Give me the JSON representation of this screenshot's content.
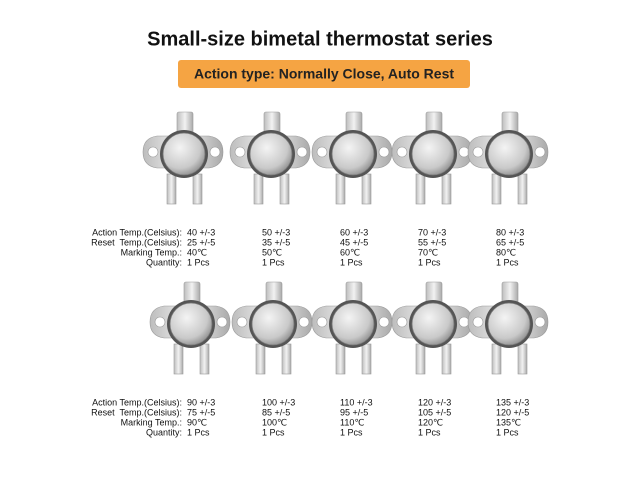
{
  "header": {
    "title": "Small-size bimetal thermostat series",
    "badge": "Action type: Normally Close, Auto Rest"
  },
  "rows": [
    {
      "labels": [
        "Action Temp.(Celsius):",
        "Reset  Temp.(Celsius):",
        "Marking Temp.:",
        "Quantity:"
      ],
      "items": [
        {
          "action": "40 +/-3",
          "reset": "25 +/-5",
          "marking": "40℃",
          "quantity": "1 Pcs"
        },
        {
          "action": "50 +/-3",
          "reset": "35 +/-5",
          "marking": "50℃",
          "quantity": "1 Pcs"
        },
        {
          "action": "60 +/-3",
          "reset": "45 +/-5",
          "marking": "60℃",
          "quantity": "1 Pcs"
        },
        {
          "action": "70 +/-3",
          "reset": "55 +/-5",
          "marking": "70℃",
          "quantity": "1 Pcs"
        },
        {
          "action": "80 +/-3",
          "reset": "65 +/-5",
          "marking": "80℃",
          "quantity": "1 Pcs"
        }
      ]
    },
    {
      "labels": [
        "Action Temp.(Celsius):",
        "Reset  Temp.(Celsius):",
        "Marking Temp.:",
        "Quantity:"
      ],
      "items": [
        {
          "action": "90 +/-3",
          "reset": "75 +/-5",
          "marking": "90℃",
          "quantity": "1 Pcs"
        },
        {
          "action": "100 +/-3",
          "reset": "85 +/-5",
          "marking": "100℃",
          "quantity": "1 Pcs"
        },
        {
          "action": "110 +/-3",
          "reset": "95 +/-5",
          "marking": "110℃",
          "quantity": "1 Pcs"
        },
        {
          "action": "120 +/-3",
          "reset": "105 +/-5",
          "marking": "120℃",
          "quantity": "1 Pcs"
        },
        {
          "action": "135 +/-3",
          "reset": "120 +/-5",
          "marking": "135℃",
          "quantity": "1 Pcs"
        }
      ]
    }
  ]
}
